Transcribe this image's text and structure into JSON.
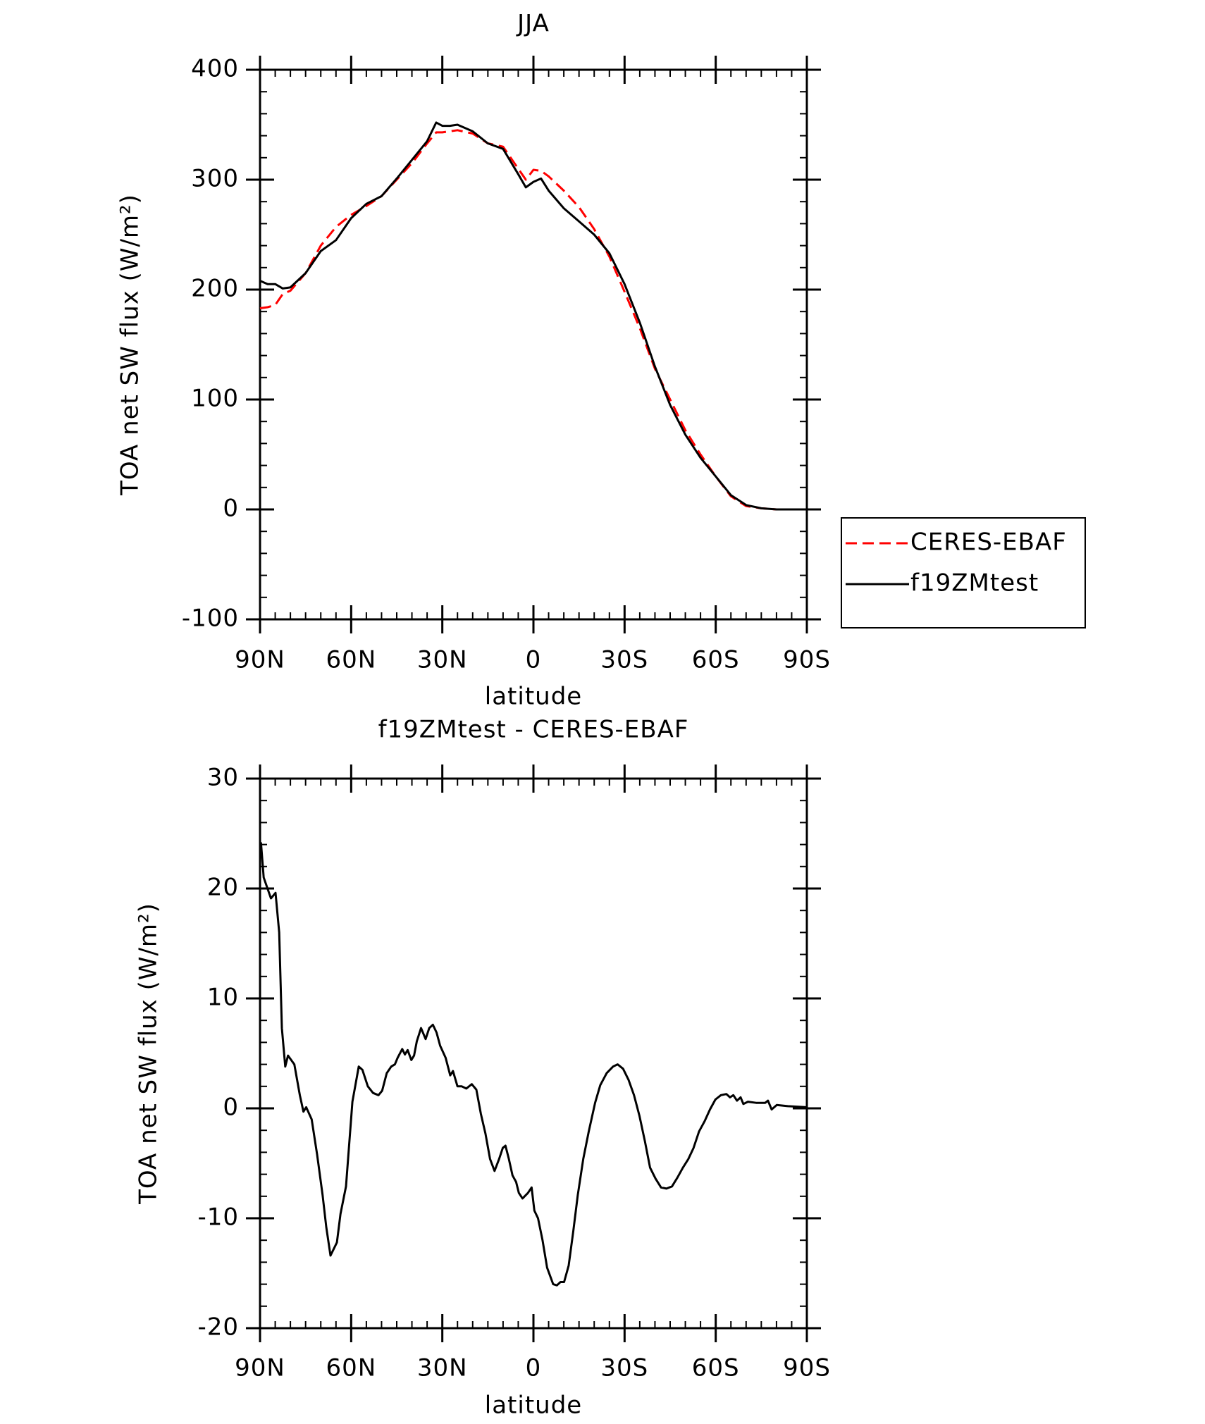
{
  "chart_data": [
    {
      "type": "line",
      "title": "JJA",
      "xlabel": "latitude",
      "ylabel": "TOA net SW flux (W/m²)",
      "x": [
        90,
        87.5,
        85,
        82.5,
        80,
        75,
        70,
        65,
        60,
        55,
        50,
        45,
        40,
        35,
        32,
        30,
        27.5,
        25,
        20,
        15,
        10,
        5,
        2.5,
        0,
        -2.5,
        -5,
        -10,
        -15,
        -20,
        -25,
        -30,
        -35,
        -40,
        -45,
        -50,
        -55,
        -60,
        -65,
        -70,
        -75,
        -80,
        -85,
        -90
      ],
      "series": [
        {
          "name": "CERES-EBAF",
          "color": "#ff0000",
          "dash": true,
          "values": [
            183,
            184,
            186,
            196,
            199,
            215,
            240,
            257,
            268,
            276,
            285,
            300,
            315,
            333,
            343,
            343,
            344,
            345,
            342,
            333,
            330,
            310,
            300,
            309,
            308,
            303,
            290,
            275,
            255,
            230,
            198,
            165,
            128,
            100,
            72,
            50,
            30,
            12,
            3,
            1,
            0,
            0,
            0
          ]
        },
        {
          "name": "f19ZMtest",
          "color": "#000000",
          "dash": false,
          "values": [
            208,
            205,
            205,
            201,
            202,
            215,
            235,
            245,
            265,
            278,
            285,
            301,
            318,
            335,
            352,
            349,
            349,
            350,
            344,
            333,
            328,
            305,
            293,
            298,
            301,
            290,
            274,
            262,
            250,
            233,
            205,
            170,
            130,
            95,
            68,
            47,
            30,
            13,
            4,
            1,
            0,
            0,
            0
          ]
        }
      ],
      "xlim": [
        90,
        -90
      ],
      "xticks": [
        {
          "value": 90,
          "label": "90N"
        },
        {
          "value": 60,
          "label": "60N"
        },
        {
          "value": 30,
          "label": "30N"
        },
        0,
        {
          "value": -30,
          "label": "30S"
        },
        {
          "value": -60,
          "label": "60S"
        },
        {
          "value": -90,
          "label": "90S"
        }
      ],
      "ylim": [
        -100,
        400
      ],
      "yticks": [
        -100,
        0,
        100,
        200,
        300,
        400
      ],
      "legend": "right"
    },
    {
      "type": "line",
      "title": "f19ZMtest - CERES-EBAF",
      "xlabel": "latitude",
      "ylabel": "TOA net SW flux (W/m²)",
      "x": [
        89.7,
        88.8,
        86.4,
        84.9,
        83.7,
        82.8,
        81.7,
        80.8,
        78.7,
        76.9,
        75.7,
        74.8,
        73.0,
        71.2,
        69.4,
        68.2,
        66.8,
        64.7,
        63.5,
        61.7,
        59.6,
        57.5,
        56.3,
        54.5,
        52.8,
        51.0,
        49.8,
        48.3,
        46.8,
        45.6,
        44.7,
        43.2,
        42.3,
        41.4,
        40.2,
        39.3,
        38.4,
        37.0,
        35.5,
        34.3,
        33.1,
        31.9,
        30.7,
        28.9,
        27.4,
        26.5,
        25.0,
        23.6,
        22.1,
        20.3,
        18.8,
        17.3,
        15.8,
        14.3,
        12.8,
        11.3,
        10.1,
        9.2,
        8.1,
        6.9,
        5.7,
        4.8,
        3.6,
        1.8,
        0.6,
        -0.3,
        -1.5,
        -3.0,
        -4.5,
        -6.5,
        -7.7,
        -8.9,
        -10.1,
        -11.6,
        -13.1,
        -14.6,
        -16.4,
        -18.2,
        -20.3,
        -22.0,
        -24.1,
        -26.2,
        -27.7,
        -29.5,
        -31.3,
        -33.1,
        -34.9,
        -36.7,
        -38.4,
        -40.2,
        -42.0,
        -43.8,
        -45.6,
        -47.4,
        -49.2,
        -51.0,
        -52.7,
        -54.5,
        -56.3,
        -58.1,
        -59.9,
        -61.7,
        -63.5,
        -64.7,
        -65.8,
        -67.0,
        -68.2,
        -69.1,
        -70.6,
        -73.3,
        -76.3,
        -77.2,
        -78.4,
        -80.1,
        -83.7,
        -90
      ],
      "values": [
        24.2,
        21,
        19.1,
        19.6,
        16,
        7.3,
        3.8,
        4.8,
        4.0,
        1.2,
        -0.3,
        0.1,
        -1.0,
        -4.2,
        -7.9,
        -10.8,
        -13.4,
        -12.2,
        -9.6,
        -7.1,
        0.6,
        3.8,
        3.5,
        2.0,
        1.4,
        1.2,
        1.6,
        3.2,
        3.8,
        4.0,
        4.6,
        5.4,
        4.9,
        5.3,
        4.4,
        4.8,
        6.1,
        7.3,
        6.3,
        7.3,
        7.6,
        6.9,
        5.7,
        4.6,
        3.0,
        3.4,
        2.0,
        2.0,
        1.8,
        2.2,
        1.7,
        -0.5,
        -2.3,
        -4.6,
        -5.7,
        -4.6,
        -3.6,
        -3.4,
        -4.6,
        -6.1,
        -6.7,
        -7.7,
        -8.2,
        -7.7,
        -7.2,
        -9.3,
        -10.0,
        -12.0,
        -14.5,
        -16.0,
        -16.1,
        -15.8,
        -15.8,
        -14.3,
        -11.2,
        -7.9,
        -4.6,
        -2.1,
        0.5,
        2.1,
        3.2,
        3.8,
        4.0,
        3.6,
        2.6,
        1.2,
        -0.7,
        -3.0,
        -5.4,
        -6.4,
        -7.2,
        -7.3,
        -7.1,
        -6.3,
        -5.4,
        -4.6,
        -3.6,
        -2.1,
        -1.2,
        -0.1,
        0.8,
        1.2,
        1.3,
        1.0,
        1.2,
        0.7,
        1.0,
        0.4,
        0.6,
        0.5,
        0.5,
        0.7,
        -0.1,
        0.3,
        0.2,
        0.1
      ],
      "color": "#000000",
      "xlim": [
        90,
        -90
      ],
      "xticks": [
        {
          "value": 90,
          "label": "90N"
        },
        {
          "value": 60,
          "label": "60N"
        },
        {
          "value": 30,
          "label": "30N"
        },
        0,
        {
          "value": -30,
          "label": "30S"
        },
        {
          "value": -60,
          "label": "60S"
        },
        {
          "value": -90,
          "label": "90S"
        }
      ],
      "ylim": [
        -20,
        30
      ],
      "yticks": [
        -20,
        -10,
        0,
        10,
        20,
        30
      ]
    }
  ]
}
